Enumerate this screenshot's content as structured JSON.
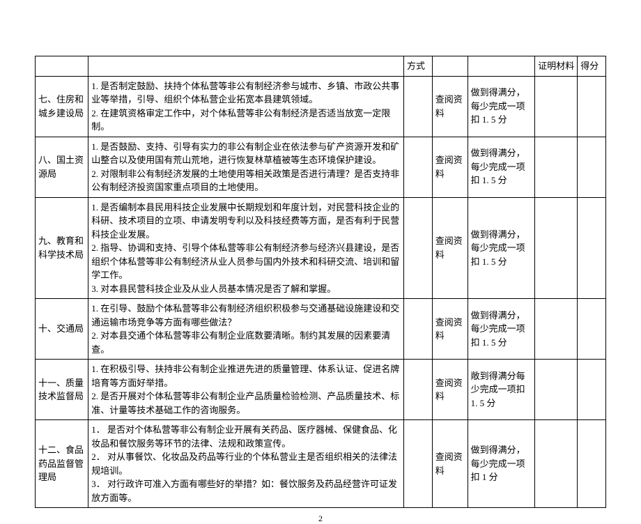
{
  "header": {
    "h3": "方式",
    "h6": "证明材料",
    "h7": "得分"
  },
  "rows": [
    {
      "dept": "七、住房和城乡建设局",
      "content": "1. 是否制定鼓励、扶持个体私营等非公有制经济参与城市、乡镇、市政公共事业等举措，引导、组织个体私营企业拓宽本县建筑领域。\n2. 在建筑资格审定工作中，对个体私营等非公有制经济是否适当放宽一定限制。",
      "method": "查阅资料",
      "score": "做到得满分，每少完成一项扣 1. 5 分"
    },
    {
      "dept": "八、国土资源局",
      "content": "1. 是否鼓励、支持、引导有实力的非公有制企业在依法参与矿产资源开发和矿山整合以及使用国有荒山荒地，进行恢复林草植被等生态环境保护建设。\n2. 对限制非公有制经济发展的土地使用等相关政策是否进行清理？是否支持非公有制经济投资国家重点项目的土地使用。",
      "method": "查阅资料",
      "score": "做到得满分，每少完成一项扣 1. 5 分"
    },
    {
      "dept": "九、教育和科学技术局",
      "content": "1. 是否编制本县民用科技企业发展中长期规划和年度计划，对民营科技企业的科研、技术项目的立项、申请发明专利以及科技经费等方面，是否有利于民营科技企业发展。\n2. 指导、协调和支持、引导个体私营等非公有制经济参与经济兴县建设，是否组织个体私营等非公有制经济从业人员参与国内外技术和科研交流、培训和留学工作。\n3. 对本县民营科技企业及从业人员基本情况是否了解和掌握。",
      "method": "查阅资料",
      "score": "做到得满分，每少完成一项扣 1. 5 分"
    },
    {
      "dept": "十、交通局",
      "content": "1. 在引导、鼓励个体私营等非公有制经济组织积极参与交通基础设施建设和交通运输市场竞争等方面有哪些做法？\n2. 对本县交通个体私营等非公有制企业底数要清晰。制约其发展的因素要清查。",
      "method": "查阅资料",
      "score": "做到得满分，每少完成一项扣 1. 5 分"
    },
    {
      "dept": "十一、质量技术监督局",
      "content": "1. 在积极引导、扶持非公有制企业推进先进的质量管理、体系认证、促进名牌培育等方面好举措。\n2. 是否开展对个体私营等非公有制企业产品质量检验检测、产品质量技术、标准、计量等技术基础工作的咨询服务。",
      "method": "查阅资料",
      "score": "敞到得满分每少完成一项扣 1. 5 分"
    },
    {
      "dept": "十二、食品药品监督管理局",
      "content": "1． 是否对个体私营等非公有制企业开展有关药品、医疗器械、保健食品、化妆品和餐饮服务等环节的法律、法规和政策宣传。\n2． 对从事餐饮、化妆品及药品等行业的个体私营业主是否组织相关的法律法规培训。\n3． 对行政许可准入方面有哪些好的举措？如：餐饮服务及药品经营许可证发放方面等。",
      "method": "查阅资料",
      "score": "做到得满分，每少完成一项扣 1 分"
    }
  ],
  "pageNumber": "2"
}
